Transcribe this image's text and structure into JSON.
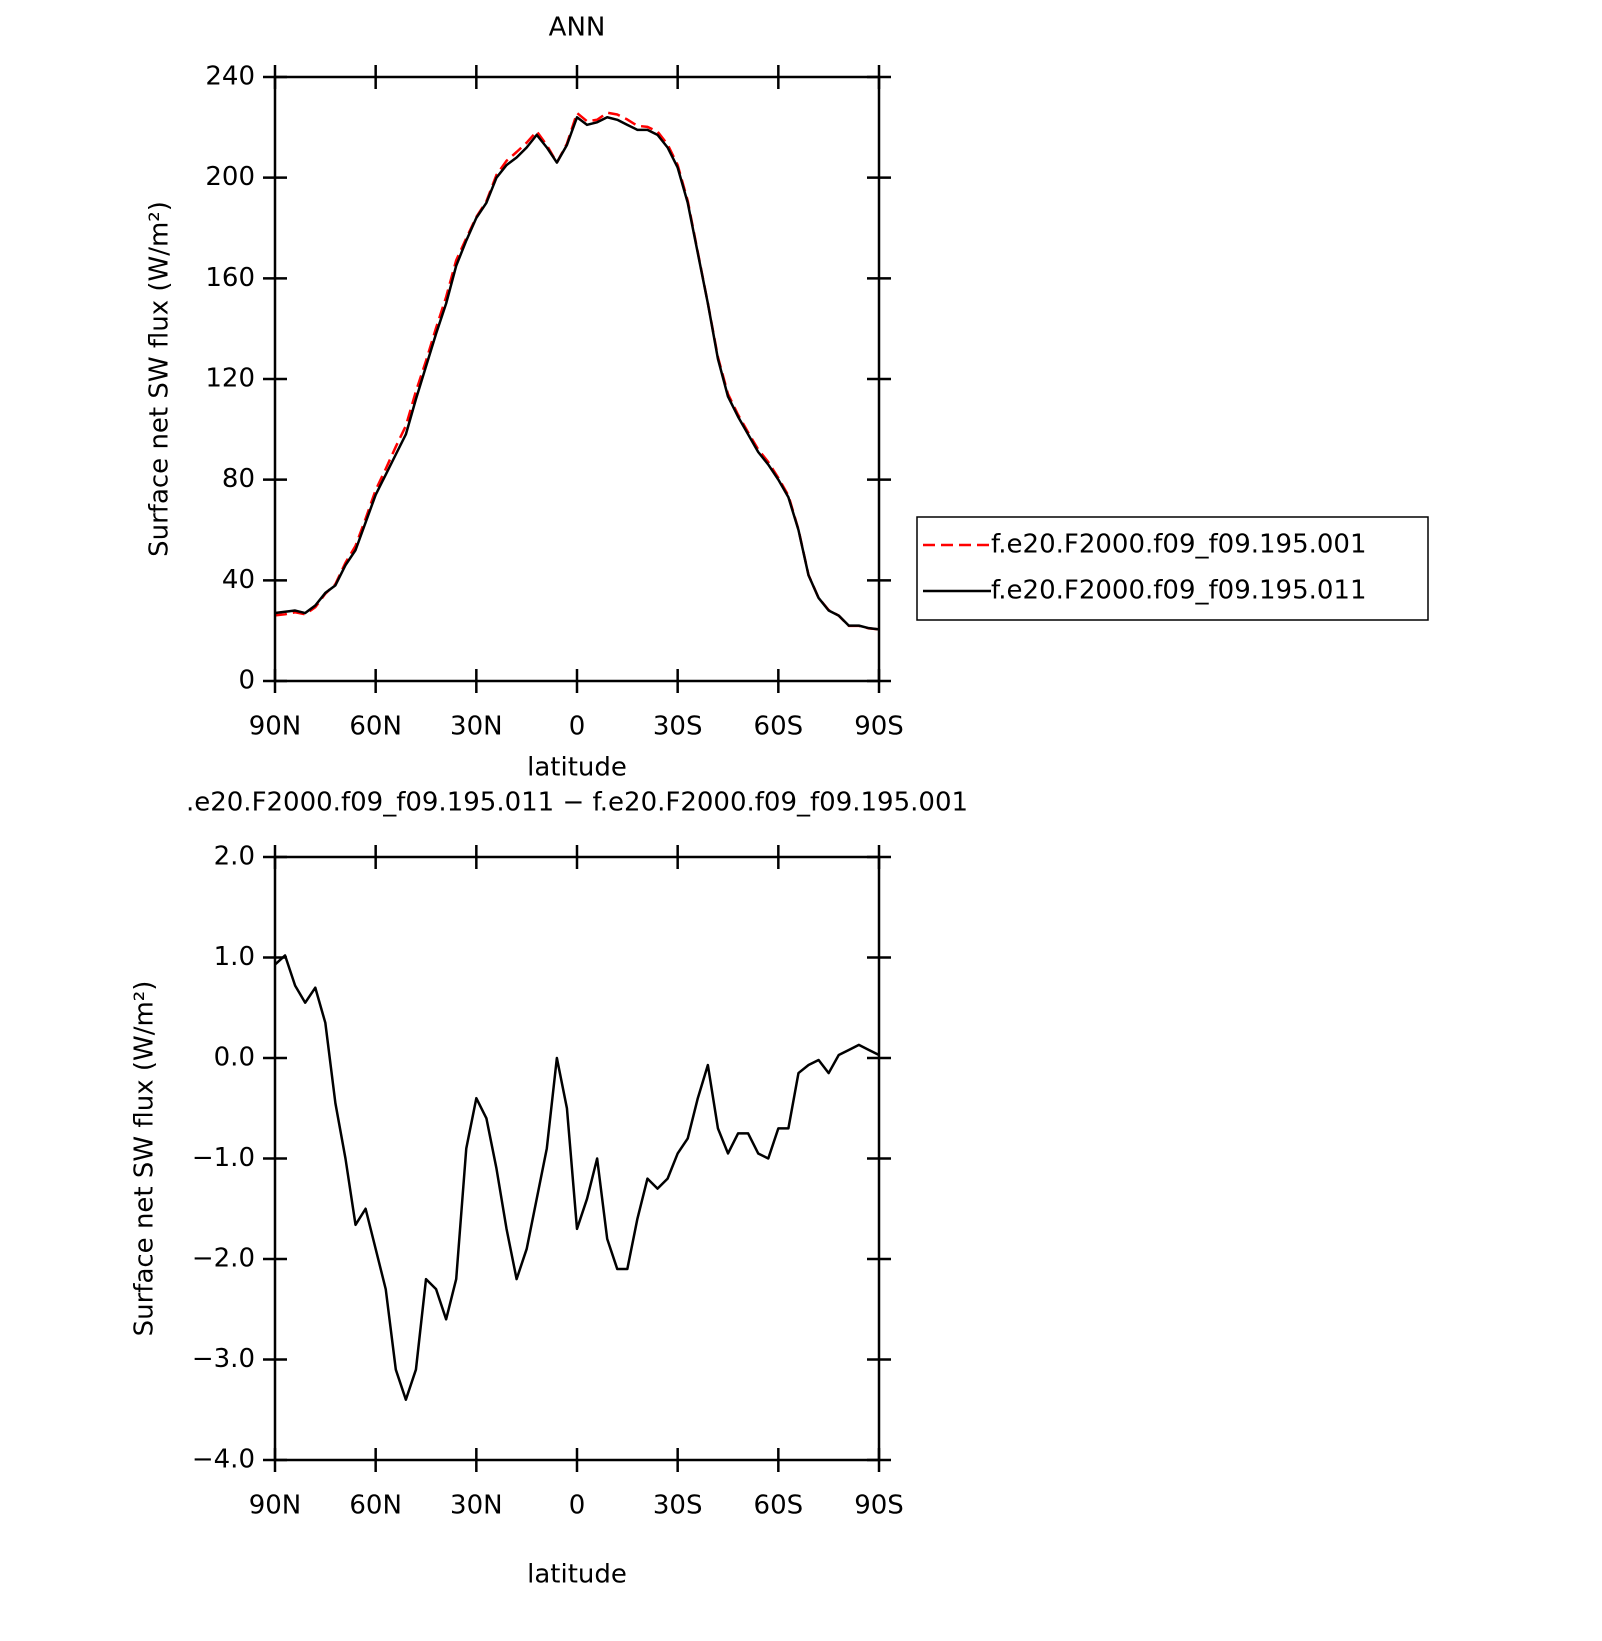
{
  "chart_data": [
    {
      "type": "line",
      "title": "ANN",
      "xlabel": "latitude",
      "ylabel": "Surface net SW flux (W/m²)",
      "x": [
        90,
        87,
        84,
        81,
        78,
        75,
        72,
        69,
        66,
        63,
        60,
        57,
        54,
        51,
        48,
        45,
        42,
        39,
        36,
        33,
        30,
        27,
        24,
        21,
        18,
        15,
        12,
        9,
        6,
        3,
        0,
        -3,
        -6,
        -9,
        -12,
        -15,
        -18,
        -21,
        -24,
        -27,
        -30,
        -33,
        -36,
        -39,
        -42,
        -45,
        -48,
        -51,
        -54,
        -57,
        -60,
        -63,
        -66,
        -69,
        -72,
        -75,
        -78,
        -81,
        -84,
        -87,
        -90
      ],
      "series": [
        {
          "name": "f.e20.F2000.f09_f09.195.001",
          "color": "#ff0000",
          "dashed": true,
          "values": [
            26.1,
            26.5,
            27.3,
            26.5,
            29.3,
            34.7,
            38.5,
            47,
            53.7,
            64.5,
            75.9,
            84.3,
            93.1,
            101.4,
            115.1,
            127.2,
            140.3,
            152.6,
            167.2,
            175.9,
            184.4,
            190.6,
            201.1,
            206.7,
            210.2,
            213.9,
            218.4,
            212.9,
            206,
            213.5,
            225.7,
            222.4,
            223,
            225.8,
            225.1,
            223.1,
            220.6,
            220.2,
            218.3,
            213.2,
            205,
            190.8,
            170.4,
            150.1,
            128.7,
            114,
            105.8,
            98.8,
            92,
            87,
            80.7,
            73.7,
            60.2,
            42.1,
            33,
            28.2,
            26,
            21.9,
            21.9,
            20.9,
            20.5
          ]
        },
        {
          "name": "f.e20.F2000.f09_f09.195.011",
          "color": "#000000",
          "dashed": false,
          "values": [
            27,
            27.5,
            28,
            27,
            30,
            35,
            38,
            46,
            52,
            63,
            74,
            82,
            90,
            98,
            112,
            125,
            138,
            150,
            165,
            175,
            184,
            190,
            200,
            205,
            208,
            212,
            217,
            212,
            206,
            213,
            224,
            221,
            222,
            224,
            223,
            221,
            219,
            219,
            217,
            212,
            204,
            190,
            170,
            150,
            128,
            113,
            105,
            98,
            91,
            86,
            80,
            73,
            60,
            42,
            33,
            28,
            26,
            22,
            22,
            21,
            20.5
          ]
        }
      ],
      "xlim": [
        90,
        -90
      ],
      "xticks": [
        {
          "value": 90,
          "label": "90N"
        },
        {
          "value": 60,
          "label": "60N"
        },
        {
          "value": 30,
          "label": "30N"
        },
        0,
        {
          "value": -30,
          "label": "30S"
        },
        {
          "value": -60,
          "label": "60S"
        },
        {
          "value": -90,
          "label": "90S"
        }
      ],
      "ylim": [
        0,
        240
      ],
      "yticks": [
        0,
        40,
        80,
        120,
        160,
        200,
        240
      ],
      "legend": "right"
    },
    {
      "type": "line",
      "title": ".e20.F2000.f09_f09.195.011 − f.e20.F2000.f09_f09.195.001",
      "xlabel": "latitude",
      "ylabel": "Surface net SW flux (W/m²)",
      "x": [
        90,
        87,
        84,
        81,
        78,
        75,
        72,
        69,
        66,
        63,
        60,
        57,
        54,
        51,
        48,
        45,
        42,
        39,
        36,
        33,
        30,
        27,
        24,
        21,
        18,
        15,
        12,
        9,
        6,
        3,
        0,
        -3,
        -6,
        -9,
        -12,
        -15,
        -18,
        -21,
        -24,
        -27,
        -30,
        -33,
        -36,
        -39,
        -42,
        -45,
        -48,
        -51,
        -54,
        -57,
        -60,
        -63,
        -66,
        -69,
        -72,
        -75,
        -78,
        -81,
        -84,
        -87,
        -90
      ],
      "series": [
        {
          "color": "#000000",
          "dashed": false,
          "values": [
            0.93,
            1.02,
            0.72,
            0.55,
            0.7,
            0.35,
            -0.45,
            -1.0,
            -1.66,
            -1.5,
            -1.9,
            -2.3,
            -3.1,
            -3.4,
            -3.1,
            -2.2,
            -2.3,
            -2.6,
            -2.2,
            -0.9,
            -0.4,
            -0.6,
            -1.1,
            -1.7,
            -2.2,
            -1.9,
            -1.4,
            -0.9,
            0.0,
            -0.5,
            -1.7,
            -1.4,
            -1.0,
            -1.8,
            -2.1,
            -2.1,
            -1.6,
            -1.2,
            -1.3,
            -1.2,
            -0.95,
            -0.8,
            -0.4,
            -0.07,
            -0.7,
            -0.95,
            -0.75,
            -0.75,
            -0.95,
            -1.0,
            -0.7,
            -0.7,
            -0.15,
            -0.07,
            -0.02,
            -0.15,
            0.03,
            0.08,
            0.13,
            0.08,
            0.03
          ]
        }
      ],
      "xlim": [
        90,
        -90
      ],
      "xticks": [
        {
          "value": 90,
          "label": "90N"
        },
        {
          "value": 60,
          "label": "60N"
        },
        {
          "value": 30,
          "label": "30N"
        },
        0,
        {
          "value": -30,
          "label": "30S"
        },
        {
          "value": -60,
          "label": "60S"
        },
        {
          "value": -90,
          "label": "90S"
        }
      ],
      "ylim": [
        -4,
        2
      ],
      "yticks": [
        {
          "value": -4,
          "label": "−4.0"
        },
        {
          "value": -3,
          "label": "−3.0"
        },
        {
          "value": -2,
          "label": "−2.0"
        },
        {
          "value": -1,
          "label": "−1.0"
        },
        {
          "value": 0,
          "label": "0.0"
        },
        {
          "value": 1,
          "label": "1.0"
        },
        {
          "value": 2,
          "label": "2.0"
        }
      ]
    }
  ]
}
